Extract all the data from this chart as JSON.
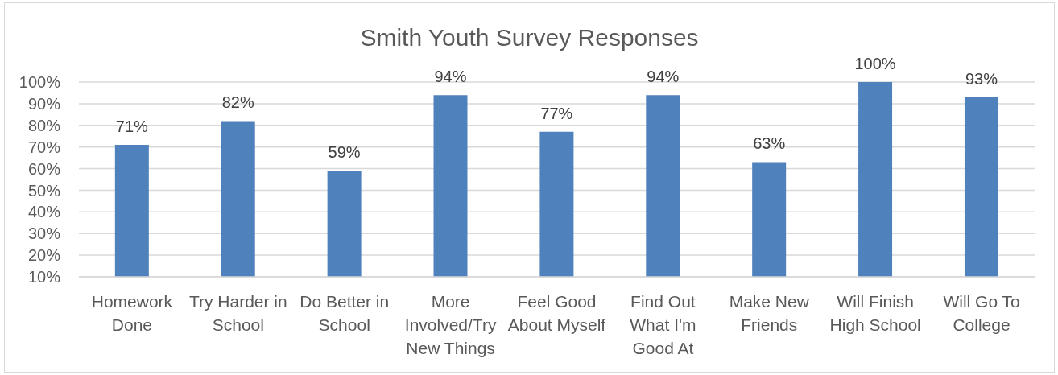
{
  "chart_data": {
    "type": "bar",
    "title": "Smith Youth Survey Responses",
    "categories": [
      "Homework Done",
      "Try Harder in School",
      "Do Better in School",
      "More Involved/Try New Things",
      "Feel Good About Myself",
      "Find Out What I'm Good At",
      "Make New Friends",
      "Will Finish High School",
      "Will Go To College"
    ],
    "values": [
      71,
      82,
      59,
      94,
      77,
      94,
      63,
      100,
      93
    ],
    "value_labels": [
      "71%",
      "82%",
      "59%",
      "94%",
      "77%",
      "94%",
      "63%",
      "100%",
      "93%"
    ],
    "color": "#4f81bd",
    "ylim": [
      10,
      100
    ],
    "yticks": [
      {
        "value": 10,
        "label": "10%"
      },
      {
        "value": 20,
        "label": "20%"
      },
      {
        "value": 30,
        "label": "30%"
      },
      {
        "value": 40,
        "label": "40%"
      },
      {
        "value": 50,
        "label": "50%"
      },
      {
        "value": 60,
        "label": "60%"
      },
      {
        "value": 70,
        "label": "70%"
      },
      {
        "value": 80,
        "label": "80%"
      },
      {
        "value": 90,
        "label": "90%"
      },
      {
        "value": 100,
        "label": "100%"
      }
    ],
    "grid": "y"
  }
}
